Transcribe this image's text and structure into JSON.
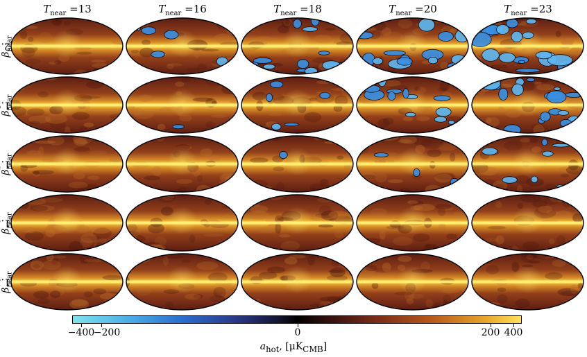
{
  "columns": [
    {
      "symbol": "T",
      "sub": "near",
      "value": "=13"
    },
    {
      "symbol": "T",
      "sub": "near",
      "value": "=16"
    },
    {
      "symbol": "T",
      "sub": "near",
      "value": "=18"
    },
    {
      "symbol": "T",
      "sub": "near",
      "value": "=20"
    },
    {
      "symbol": "T",
      "sub": "near",
      "value": "=23"
    }
  ],
  "rows": [
    {
      "symbol": "β",
      "sub": "near",
      "value": "=2.1"
    },
    {
      "symbol": "β",
      "sub": "near",
      "value": "=1.9"
    },
    {
      "symbol": "β",
      "sub": "near",
      "value": "=1.7"
    },
    {
      "symbol": "β",
      "sub": "near",
      "value": "=1.5"
    },
    {
      "symbol": "β",
      "sub": "near",
      "value": "=1.3"
    }
  ],
  "negative_extent": [
    [
      0.0,
      0.25,
      0.55,
      0.8,
      0.95
    ],
    [
      0.0,
      0.05,
      0.25,
      0.55,
      0.8
    ],
    [
      0.0,
      0.0,
      0.05,
      0.15,
      0.4
    ],
    [
      0.0,
      0.0,
      0.0,
      0.0,
      0.02
    ],
    [
      0.0,
      0.0,
      0.0,
      0.0,
      0.0
    ]
  ],
  "colorbar": {
    "ticks": [
      "−400",
      "−200",
      "0",
      "200",
      "400"
    ],
    "label_main": "a",
    "label_sub": "hot",
    "label_units": ", [μK",
    "label_units_sub": "CMB",
    "label_close": "]",
    "colors": [
      "#7fe3ec",
      "#2a6fd0",
      "#000000",
      "#b8581a",
      "#ffe25a"
    ]
  }
}
